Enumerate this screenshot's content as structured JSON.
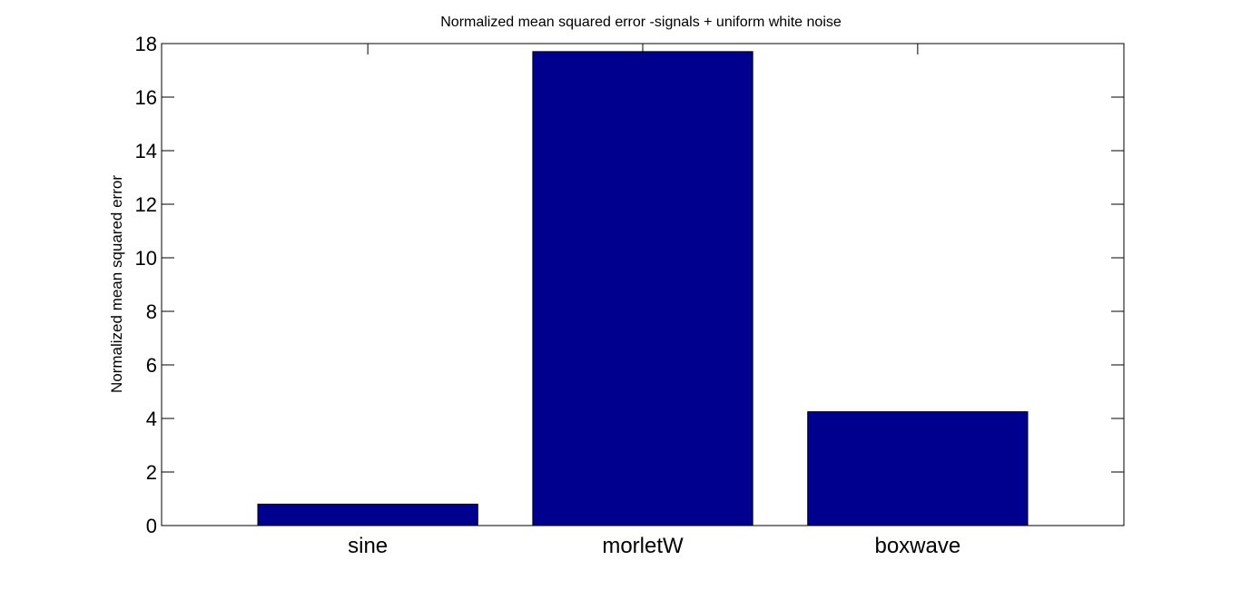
{
  "chart_data": {
    "type": "bar",
    "title": "Normalized mean squared error -signals + uniform white noise",
    "xlabel": "",
    "ylabel": "Normalized mean squared error",
    "categories": [
      "sine",
      "morletW",
      "boxwave"
    ],
    "values": [
      0.8,
      17.7,
      4.25
    ],
    "ylim": [
      0,
      18
    ],
    "yticks": [
      "0",
      "2",
      "4",
      "6",
      "8",
      "10",
      "12",
      "14",
      "16",
      "18"
    ],
    "bar_color": "#00008f",
    "grid": false,
    "legend": "none"
  }
}
